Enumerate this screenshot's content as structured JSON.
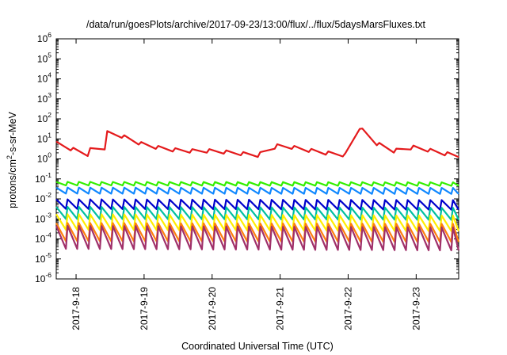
{
  "chart_data": {
    "type": "line",
    "title": "/data/run/goesPlots/archive/2017-09-23/13:00/flux/../flux/5daysMarsFluxes.txt",
    "xlabel": "Coordinated Universal Time (UTC)",
    "ylabel": {
      "prefix": "protons/cm",
      "superscript": "2",
      "suffix": "-s-sr-MeV"
    },
    "y_scale": "log",
    "ylim": [
      1e-06,
      1000000.0
    ],
    "xlim": [
      "2017-09-17 17:00",
      "2017-09-23 15:00"
    ],
    "grid": false,
    "legend": "none",
    "y_ticks": [
      {
        "base": "10",
        "exp": "-6"
      },
      {
        "base": "10",
        "exp": "-5"
      },
      {
        "base": "10",
        "exp": "-4"
      },
      {
        "base": "10",
        "exp": "-3"
      },
      {
        "base": "10",
        "exp": "-2"
      },
      {
        "base": "10",
        "exp": "-1"
      },
      {
        "base": "10",
        "exp": "0"
      },
      {
        "base": "10",
        "exp": "1"
      },
      {
        "base": "10",
        "exp": "2"
      },
      {
        "base": "10",
        "exp": "3"
      },
      {
        "base": "10",
        "exp": "4"
      },
      {
        "base": "10",
        "exp": "5"
      },
      {
        "base": "10",
        "exp": "6"
      }
    ],
    "x_ticks": [
      "2017-9-18",
      "2017-9-19",
      "2017-9-20",
      "2017-9-21",
      "2017-9-22",
      "2017-9-23"
    ],
    "series": [
      {
        "color": "#e41a1c",
        "x": [
          "2017-09-17 17:00",
          "2017-09-18 04:00",
          "2017-09-18 06:00",
          "2017-09-18 10:00",
          "2017-09-18 11:00",
          "2017-09-18 15:00",
          "2017-09-19 00:00",
          "2017-09-19 08:00",
          "2017-09-19 16:00",
          "2017-09-20 00:00",
          "2017-09-20 08:00",
          "2017-09-20 16:00",
          "2017-09-20 20:00",
          "2017-09-21 00:00",
          "2017-09-21 08:00",
          "2017-09-21 16:00",
          "2017-09-22 00:00",
          "2017-09-22 04:00",
          "2017-09-22 08:00",
          "2017-09-22 16:00",
          "2017-09-23 00:00",
          "2017-09-23 08:00",
          "2017-09-23 15:00"
        ],
        "y": [
          6,
          1.6,
          5,
          3,
          20,
          16,
          5,
          3,
          2.5,
          2.5,
          2,
          1.5,
          3,
          5,
          3,
          2,
          1.5,
          40,
          8,
          2.5,
          4,
          2,
          1.5
        ],
        "sawtooth": {
          "amp": 1.5,
          "period_hours": 6
        }
      },
      {
        "color": "#33ee00",
        "x": [
          "2017-09-17 17:00",
          "2017-09-23 15:00"
        ],
        "y": [
          0.058,
          0.055
        ],
        "sawtooth": {
          "amp": 1.5,
          "period_hours": 4
        }
      },
      {
        "color": "#1188ff",
        "x": [
          "2017-09-17 17:00",
          "2017-09-23 15:00"
        ],
        "y": [
          0.026,
          0.025
        ],
        "sawtooth": {
          "amp": 2,
          "period_hours": 4
        }
      },
      {
        "color": "#0000cc",
        "x": [
          "2017-09-17 17:00",
          "2017-09-23 15:00"
        ],
        "y": [
          0.0055,
          0.005
        ],
        "sawtooth": {
          "amp": 3,
          "period_hours": 4
        }
      },
      {
        "color": "#00c0a0",
        "x": [
          "2017-09-17 17:00",
          "2017-09-23 15:00"
        ],
        "y": [
          0.002,
          0.0018
        ],
        "sawtooth": {
          "amp": 4,
          "period_hours": 4
        }
      },
      {
        "color": "#ffee00",
        "x": [
          "2017-09-17 17:00",
          "2017-09-23 15:00"
        ],
        "y": [
          0.0007,
          0.0006
        ],
        "sawtooth": {
          "amp": 6,
          "period_hours": 4
        }
      },
      {
        "color": "#ff7f0e",
        "x": [
          "2017-09-17 17:00",
          "2017-09-23 15:00"
        ],
        "y": [
          0.00022,
          0.0002
        ],
        "sawtooth": {
          "amp": 8,
          "period_hours": 4
        }
      },
      {
        "color": "#a0306a",
        "x": [
          "2017-09-17 17:00",
          "2017-09-23 15:00"
        ],
        "y": [
          0.00012,
          0.0001
        ],
        "sawtooth": {
          "amp": 14,
          "period_hours": 4
        }
      }
    ]
  }
}
